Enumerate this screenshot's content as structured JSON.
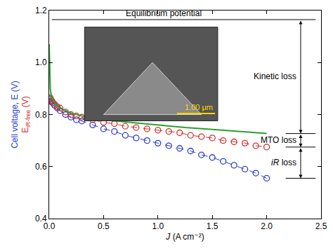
{
  "chart_data": {
    "type": "scatter",
    "xlabel": "J (A cm⁻²)",
    "ylabels": [
      {
        "text": "Cell voltage, E (V)",
        "color": "#2b3bd1"
      },
      {
        "text": "E",
        "sub": "iR-free",
        "after": " (V)",
        "color": "#d1302b"
      }
    ],
    "xlim": [
      0,
      2.5
    ],
    "xticks": [
      {
        "value": 0,
        "label": "0.0"
      },
      0.5,
      {
        "value": 1,
        "label": "1.0"
      },
      1.5,
      {
        "value": 2,
        "label": "2.0"
      },
      2.5
    ],
    "ylim": [
      0.4,
      1.2
    ],
    "yticks": [
      0.4,
      0.6,
      0.8,
      {
        "value": 1,
        "label": "1.0"
      },
      1.2
    ],
    "grid": false,
    "series": [
      {
        "color": "#2b3bd1",
        "marker": "circle-open",
        "line_style": "dash",
        "x": [
          0.01,
          0.02,
          0.03,
          0.05,
          0.075,
          0.1,
          0.15,
          0.2,
          0.25,
          0.3,
          0.4,
          0.5,
          0.6,
          0.7,
          0.8,
          0.9,
          1.0,
          1.1,
          1.2,
          1.3,
          1.4,
          1.5,
          1.6,
          1.7,
          1.8,
          1.9,
          2.0
        ],
        "values": [
          0.86,
          0.85,
          0.845,
          0.835,
          0.825,
          0.815,
          0.8,
          0.79,
          0.78,
          0.775,
          0.76,
          0.745,
          0.735,
          0.72,
          0.71,
          0.7,
          0.69,
          0.68,
          0.67,
          0.66,
          0.645,
          0.635,
          0.62,
          0.605,
          0.59,
          0.575,
          0.555
        ]
      },
      {
        "color": "#d1302b",
        "marker": "circle-open",
        "line_style": "dash",
        "x": [
          0.01,
          0.02,
          0.03,
          0.05,
          0.075,
          0.1,
          0.15,
          0.2,
          0.25,
          0.3,
          0.4,
          0.5,
          0.6,
          0.7,
          0.8,
          0.9,
          1.0,
          1.1,
          1.2,
          1.3,
          1.4,
          1.5,
          1.6,
          1.7,
          1.8,
          1.9,
          2.0
        ],
        "values": [
          0.865,
          0.855,
          0.85,
          0.84,
          0.83,
          0.825,
          0.81,
          0.8,
          0.795,
          0.79,
          0.78,
          0.77,
          0.765,
          0.755,
          0.75,
          0.745,
          0.74,
          0.735,
          0.73,
          0.72,
          0.715,
          0.71,
          0.7,
          0.695,
          0.69,
          0.68,
          0.675
        ]
      },
      {
        "color": "#2ca02c",
        "marker": "none",
        "line_style": "solid",
        "x": [
          0,
          0.005,
          0.01,
          0.02,
          0.05,
          0.1,
          0.2,
          0.3,
          0.5,
          0.75,
          1.0,
          1.25,
          1.5,
          1.75,
          2.0
        ],
        "values": [
          1.07,
          0.95,
          0.9,
          0.87,
          0.845,
          0.825,
          0.805,
          0.795,
          0.78,
          0.77,
          0.76,
          0.75,
          0.743,
          0.735,
          0.727
        ]
      }
    ],
    "hlines": [
      {
        "y": 1.165,
        "label": "Equilibrium potential"
      }
    ],
    "losses": [
      {
        "label": "Kinetic loss",
        "from": 1.165,
        "to": 0.727
      },
      {
        "label": "MTO loss",
        "from": 0.727,
        "to": 0.675
      },
      {
        "label": "iR loss",
        "from": 0.675,
        "to": 0.555
      }
    ],
    "inset": {
      "caption": "1.00 μm"
    }
  }
}
